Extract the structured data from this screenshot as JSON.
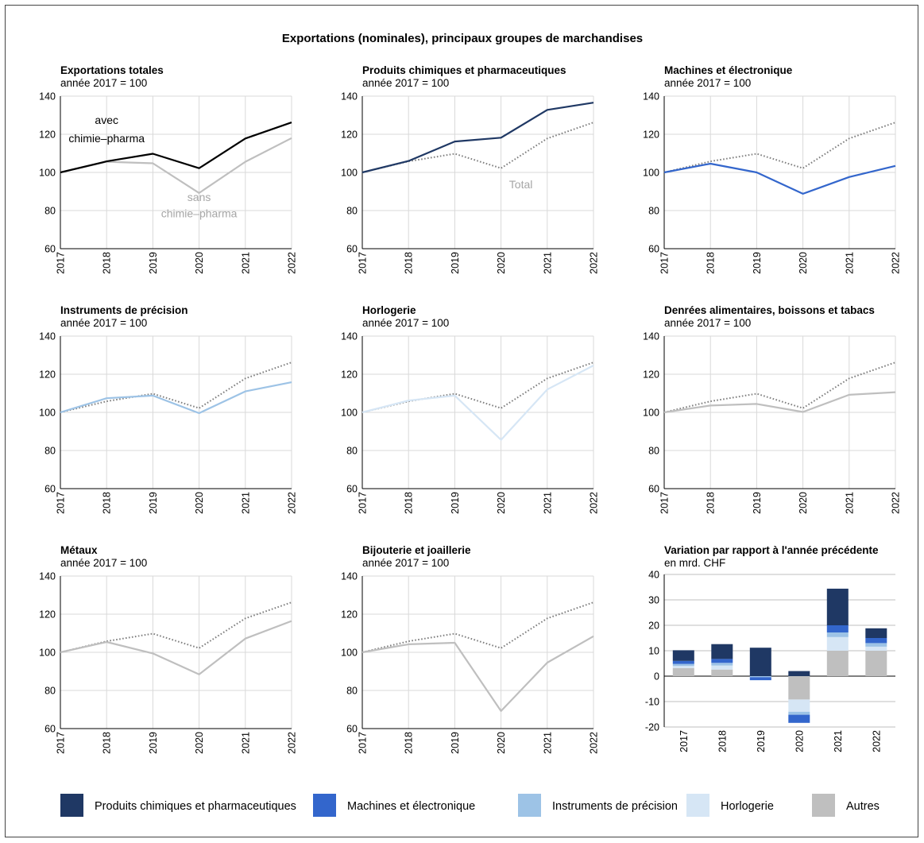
{
  "title": "Exportations (nominales), principaux groupes de marchandises",
  "colors": {
    "chem": "#1f3864",
    "mach": "#3366cc",
    "inst": "#9dc3e6",
    "horl": "#d6e6f5",
    "autres": "#bfbfbf",
    "avec": "#000000",
    "sans": "#bfbfbf",
    "total": "#7f7f7f",
    "grid": "#d9d9d9"
  },
  "legend": [
    {
      "label": "Produits chimiques et pharmaceutiques",
      "color": "#1f3864"
    },
    {
      "label": "Machines et électronique",
      "color": "#3366cc"
    },
    {
      "label": "Instruments de précision",
      "color": "#9dc3e6"
    },
    {
      "label": "Horlogerie",
      "color": "#d6e6f5"
    },
    {
      "label": "Autres",
      "color": "#bfbfbf"
    }
  ],
  "chart_data": [
    {
      "type": "line",
      "title": "Exportations totales",
      "subtitle": "année 2017 = 100",
      "x": [
        "2017",
        "2018",
        "2019",
        "2020",
        "2021",
        "2022"
      ],
      "ylim": [
        60,
        140
      ],
      "yticks": [
        60,
        80,
        100,
        120,
        140
      ],
      "series": [
        {
          "name": "sans chimie–pharma",
          "values": [
            100,
            105.6,
            104.8,
            89.2,
            105.6,
            118.0
          ],
          "color": "#bfbfbf"
        },
        {
          "name": "avec chimie–pharma",
          "values": [
            100,
            105.8,
            109.8,
            102.2,
            117.8,
            126.2
          ],
          "color": "#000000"
        }
      ],
      "annotations": [
        {
          "text": "avec",
          "x": "2018",
          "y": 127.5
        },
        {
          "text": "chimie–pharma",
          "x": "2018",
          "y": 118.0
        },
        {
          "text": "sans",
          "x": "2020",
          "y": 87.0
        },
        {
          "text": "chimie–pharma",
          "x": "2020",
          "y": 78.5
        }
      ]
    },
    {
      "type": "line",
      "title": "Produits chimiques et pharmaceutiques",
      "subtitle": "année 2017 = 100",
      "x": [
        "2017",
        "2018",
        "2019",
        "2020",
        "2021",
        "2022"
      ],
      "ylim": [
        60,
        140
      ],
      "yticks": [
        60,
        80,
        100,
        120,
        140
      ],
      "series": [
        {
          "name": "Total",
          "values": [
            100,
            105.8,
            109.8,
            102.2,
            117.8,
            126.2
          ],
          "color": "#7f7f7f",
          "dotted": true
        },
        {
          "values": [
            100,
            106.0,
            116.2,
            118.2,
            132.8,
            136.6
          ],
          "color": "#1f3864"
        }
      ],
      "annotations": [
        {
          "text": "Total",
          "x": "2020",
          "y": 93.8
        }
      ]
    },
    {
      "type": "line",
      "title": "Machines et électronique",
      "subtitle": "année 2017 = 100",
      "x": [
        "2017",
        "2018",
        "2019",
        "2020",
        "2021",
        "2022"
      ],
      "ylim": [
        60,
        140
      ],
      "yticks": [
        60,
        80,
        100,
        120,
        140
      ],
      "series": [
        {
          "values": [
            100,
            105.8,
            109.8,
            102.2,
            117.8,
            126.2
          ],
          "color": "#7f7f7f",
          "dotted": true
        },
        {
          "values": [
            100,
            104.6,
            100.0,
            88.8,
            97.6,
            103.4
          ],
          "color": "#3366cc"
        }
      ]
    },
    {
      "type": "line",
      "title": "Instruments de précision",
      "subtitle": "année 2017 = 100",
      "x": [
        "2017",
        "2018",
        "2019",
        "2020",
        "2021",
        "2022"
      ],
      "ylim": [
        60,
        140
      ],
      "yticks": [
        60,
        80,
        100,
        120,
        140
      ],
      "series": [
        {
          "values": [
            100,
            105.8,
            109.8,
            102.2,
            117.8,
            126.2
          ],
          "color": "#7f7f7f",
          "dotted": true
        },
        {
          "values": [
            100,
            107.4,
            108.8,
            99.6,
            111.0,
            115.8
          ],
          "color": "#9dc3e6"
        }
      ]
    },
    {
      "type": "line",
      "title": "Horlogerie",
      "subtitle": "année 2017 = 100",
      "x": [
        "2017",
        "2018",
        "2019",
        "2020",
        "2021",
        "2022"
      ],
      "ylim": [
        60,
        140
      ],
      "yticks": [
        60,
        80,
        100,
        120,
        140
      ],
      "series": [
        {
          "values": [
            100,
            105.8,
            109.8,
            102.2,
            117.8,
            126.2
          ],
          "color": "#7f7f7f",
          "dotted": true
        },
        {
          "values": [
            100,
            106.2,
            108.8,
            85.6,
            112.0,
            124.6
          ],
          "color": "#d6e6f5"
        }
      ]
    },
    {
      "type": "line",
      "title": "Denrées alimentaires, boissons et tabacs",
      "subtitle": "année 2017 = 100",
      "x": [
        "2017",
        "2018",
        "2019",
        "2020",
        "2021",
        "2022"
      ],
      "ylim": [
        60,
        140
      ],
      "yticks": [
        60,
        80,
        100,
        120,
        140
      ],
      "series": [
        {
          "values": [
            100,
            105.8,
            109.8,
            102.2,
            117.8,
            126.2
          ],
          "color": "#7f7f7f",
          "dotted": true
        },
        {
          "values": [
            100,
            103.6,
            104.4,
            100.2,
            109.2,
            110.6
          ],
          "color": "#bfbfbf"
        }
      ]
    },
    {
      "type": "line",
      "title": "Métaux",
      "subtitle": "année 2017 = 100",
      "x": [
        "2017",
        "2018",
        "2019",
        "2020",
        "2021",
        "2022"
      ],
      "ylim": [
        60,
        140
      ],
      "yticks": [
        60,
        80,
        100,
        120,
        140
      ],
      "series": [
        {
          "values": [
            100,
            105.8,
            109.8,
            102.2,
            117.8,
            126.2
          ],
          "color": "#7f7f7f",
          "dotted": true
        },
        {
          "values": [
            100,
            105.4,
            99.4,
            88.4,
            107.2,
            116.4
          ],
          "color": "#bfbfbf"
        }
      ]
    },
    {
      "type": "line",
      "title": "Bijouterie et joaillerie",
      "subtitle": "année 2017 = 100",
      "x": [
        "2017",
        "2018",
        "2019",
        "2020",
        "2021",
        "2022"
      ],
      "ylim": [
        60,
        140
      ],
      "yticks": [
        60,
        80,
        100,
        120,
        140
      ],
      "series": [
        {
          "values": [
            100,
            105.8,
            109.8,
            102.2,
            117.8,
            126.2
          ],
          "color": "#7f7f7f",
          "dotted": true
        },
        {
          "values": [
            100,
            104.2,
            105.0,
            69.2,
            94.6,
            108.4
          ],
          "color": "#bfbfbf"
        }
      ]
    },
    {
      "type": "bar",
      "stacked": true,
      "title": "Variation par rapport à l'année précédente",
      "subtitle": "en mrd. CHF",
      "categories": [
        "2017",
        "2018",
        "2019",
        "2020",
        "2021",
        "2022"
      ],
      "ylim": [
        -20,
        40
      ],
      "yticks": [
        -20,
        -10,
        0,
        10,
        20,
        30,
        40
      ],
      "series": [
        {
          "name": "Autres",
          "values": [
            3.2,
            2.6,
            0,
            -9.2,
            10.0,
            10.0
          ],
          "color": "#bfbfbf"
        },
        {
          "name": "Horlogerie",
          "values": [
            0.8,
            1.6,
            0,
            -4.8,
            5.4,
            1.6
          ],
          "color": "#d6e6f5"
        },
        {
          "name": "Instruments de précision",
          "values": [
            0.8,
            1.0,
            -0.4,
            -1.2,
            1.8,
            1.4
          ],
          "color": "#9dc3e6"
        },
        {
          "name": "Machines et électronique",
          "values": [
            1.2,
            1.6,
            -1.2,
            -3.2,
            2.8,
            2.0
          ],
          "color": "#3366cc"
        },
        {
          "name": "Produits chimiques et pharmaceutiques",
          "values": [
            4.2,
            5.8,
            11.2,
            2.0,
            14.4,
            3.8
          ],
          "color": "#1f3864"
        }
      ]
    }
  ]
}
